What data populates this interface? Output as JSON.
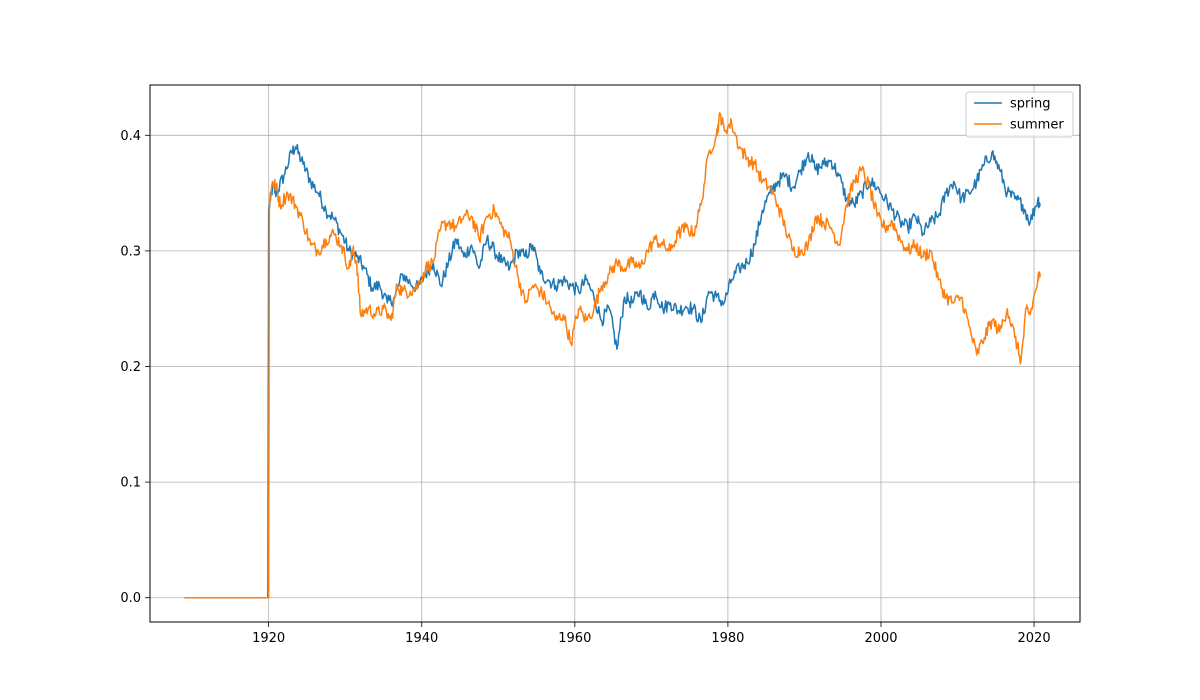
{
  "chart_data": {
    "type": "line",
    "title": "",
    "xlabel": "",
    "ylabel": "",
    "xlim": [
      1904.5,
      2026.0
    ],
    "ylim": [
      -0.021,
      0.4435
    ],
    "grid": true,
    "legend_position": "top-right",
    "xticks": [
      1920,
      1940,
      1960,
      1980,
      2000,
      2020
    ],
    "yticks": [
      0.0,
      0.1,
      0.2,
      0.3,
      0.4
    ],
    "xtick_labels": [
      "1920",
      "1940",
      "1960",
      "1980",
      "2000",
      "2020"
    ],
    "ytick_labels": [
      "0.0",
      "0.1",
      "0.2",
      "0.3",
      "0.4"
    ],
    "series": [
      {
        "name": "spring",
        "color": "#1f77b4",
        "points": [
          [
            1909.0,
            0.0
          ],
          [
            1919.9,
            0.0
          ],
          [
            1920.0,
            0.335
          ],
          [
            1920.5,
            0.355
          ],
          [
            1921.0,
            0.35
          ],
          [
            1922.0,
            0.365
          ],
          [
            1923.0,
            0.385
          ],
          [
            1923.5,
            0.39
          ],
          [
            1924.5,
            0.375
          ],
          [
            1925.5,
            0.36
          ],
          [
            1926.5,
            0.35
          ],
          [
            1927.5,
            0.335
          ],
          [
            1928.5,
            0.328
          ],
          [
            1929.5,
            0.315
          ],
          [
            1930.5,
            0.3
          ],
          [
            1931.5,
            0.295
          ],
          [
            1932.5,
            0.285
          ],
          [
            1933.5,
            0.268
          ],
          [
            1934.5,
            0.27
          ],
          [
            1935.5,
            0.255
          ],
          [
            1936.5,
            0.26
          ],
          [
            1937.5,
            0.28
          ],
          [
            1938.5,
            0.272
          ],
          [
            1939.5,
            0.268
          ],
          [
            1940.5,
            0.28
          ],
          [
            1941.5,
            0.29
          ],
          [
            1942.5,
            0.27
          ],
          [
            1943.5,
            0.29
          ],
          [
            1944.5,
            0.31
          ],
          [
            1945.5,
            0.295
          ],
          [
            1946.5,
            0.305
          ],
          [
            1947.5,
            0.285
          ],
          [
            1948.5,
            0.31
          ],
          [
            1949.5,
            0.3
          ],
          [
            1950.5,
            0.29
          ],
          [
            1951.5,
            0.285
          ],
          [
            1952.5,
            0.3
          ],
          [
            1953.5,
            0.295
          ],
          [
            1954.5,
            0.305
          ],
          [
            1955.5,
            0.28
          ],
          [
            1956.5,
            0.275
          ],
          [
            1957.5,
            0.27
          ],
          [
            1958.5,
            0.275
          ],
          [
            1959.5,
            0.27
          ],
          [
            1960.5,
            0.265
          ],
          [
            1961.5,
            0.275
          ],
          [
            1962.5,
            0.26
          ],
          [
            1963.5,
            0.24
          ],
          [
            1964.5,
            0.25
          ],
          [
            1965.5,
            0.215
          ],
          [
            1966.5,
            0.26
          ],
          [
            1967.5,
            0.255
          ],
          [
            1968.5,
            0.265
          ],
          [
            1969.5,
            0.25
          ],
          [
            1970.5,
            0.265
          ],
          [
            1971.5,
            0.25
          ],
          [
            1972.5,
            0.255
          ],
          [
            1973.5,
            0.248
          ],
          [
            1974.5,
            0.252
          ],
          [
            1975.5,
            0.25
          ],
          [
            1976.5,
            0.238
          ],
          [
            1977.5,
            0.265
          ],
          [
            1978.5,
            0.26
          ],
          [
            1979.5,
            0.255
          ],
          [
            1980.5,
            0.275
          ],
          [
            1981.5,
            0.285
          ],
          [
            1982.5,
            0.29
          ],
          [
            1983.5,
            0.305
          ],
          [
            1984.5,
            0.335
          ],
          [
            1985.5,
            0.35
          ],
          [
            1986.5,
            0.36
          ],
          [
            1987.5,
            0.365
          ],
          [
            1988.5,
            0.355
          ],
          [
            1989.5,
            0.37
          ],
          [
            1990.5,
            0.385
          ],
          [
            1991.5,
            0.37
          ],
          [
            1992.5,
            0.375
          ],
          [
            1993.5,
            0.378
          ],
          [
            1994.5,
            0.365
          ],
          [
            1995.5,
            0.345
          ],
          [
            1996.5,
            0.34
          ],
          [
            1997.5,
            0.35
          ],
          [
            1998.5,
            0.36
          ],
          [
            1999.5,
            0.355
          ],
          [
            2000.5,
            0.345
          ],
          [
            2001.5,
            0.335
          ],
          [
            2002.5,
            0.325
          ],
          [
            2003.5,
            0.32
          ],
          [
            2004.5,
            0.33
          ],
          [
            2005.5,
            0.315
          ],
          [
            2006.5,
            0.325
          ],
          [
            2007.5,
            0.33
          ],
          [
            2008.5,
            0.35
          ],
          [
            2009.5,
            0.36
          ],
          [
            2010.5,
            0.345
          ],
          [
            2011.5,
            0.35
          ],
          [
            2012.5,
            0.36
          ],
          [
            2013.5,
            0.375
          ],
          [
            2014.5,
            0.385
          ],
          [
            2015.5,
            0.37
          ],
          [
            2016.5,
            0.35
          ],
          [
            2017.5,
            0.345
          ],
          [
            2018.5,
            0.34
          ],
          [
            2019.5,
            0.325
          ],
          [
            2020.5,
            0.345
          ],
          [
            2020.8,
            0.34
          ]
        ]
      },
      {
        "name": "summer",
        "color": "#ff7f0e",
        "points": [
          [
            1909.0,
            0.0
          ],
          [
            1920.0,
            0.0
          ],
          [
            1920.1,
            0.34
          ],
          [
            1920.5,
            0.36
          ],
          [
            1921.0,
            0.355
          ],
          [
            1921.5,
            0.34
          ],
          [
            1922.5,
            0.35
          ],
          [
            1923.5,
            0.34
          ],
          [
            1924.5,
            0.325
          ],
          [
            1925.5,
            0.305
          ],
          [
            1926.5,
            0.3
          ],
          [
            1927.5,
            0.31
          ],
          [
            1928.5,
            0.315
          ],
          [
            1929.5,
            0.305
          ],
          [
            1930.5,
            0.285
          ],
          [
            1931.0,
            0.3
          ],
          [
            1931.5,
            0.29
          ],
          [
            1932.0,
            0.245
          ],
          [
            1933.0,
            0.25
          ],
          [
            1934.0,
            0.245
          ],
          [
            1935.0,
            0.25
          ],
          [
            1936.0,
            0.24
          ],
          [
            1936.8,
            0.27
          ],
          [
            1937.5,
            0.265
          ],
          [
            1938.5,
            0.265
          ],
          [
            1939.5,
            0.27
          ],
          [
            1940.5,
            0.285
          ],
          [
            1941.5,
            0.29
          ],
          [
            1942.5,
            0.32
          ],
          [
            1943.5,
            0.325
          ],
          [
            1944.5,
            0.32
          ],
          [
            1945.5,
            0.33
          ],
          [
            1946.5,
            0.33
          ],
          [
            1947.5,
            0.31
          ],
          [
            1948.5,
            0.33
          ],
          [
            1949.5,
            0.335
          ],
          [
            1950.5,
            0.32
          ],
          [
            1951.5,
            0.31
          ],
          [
            1952.5,
            0.28
          ],
          [
            1953.5,
            0.255
          ],
          [
            1954.5,
            0.27
          ],
          [
            1955.5,
            0.265
          ],
          [
            1956.5,
            0.255
          ],
          [
            1957.5,
            0.24
          ],
          [
            1958.5,
            0.245
          ],
          [
            1959.5,
            0.22
          ],
          [
            1960.5,
            0.25
          ],
          [
            1961.5,
            0.24
          ],
          [
            1962.5,
            0.25
          ],
          [
            1963.5,
            0.27
          ],
          [
            1964.5,
            0.28
          ],
          [
            1965.5,
            0.29
          ],
          [
            1966.5,
            0.285
          ],
          [
            1967.5,
            0.29
          ],
          [
            1968.5,
            0.285
          ],
          [
            1969.5,
            0.3
          ],
          [
            1970.5,
            0.31
          ],
          [
            1971.5,
            0.305
          ],
          [
            1972.5,
            0.3
          ],
          [
            1973.5,
            0.315
          ],
          [
            1974.5,
            0.32
          ],
          [
            1975.5,
            0.315
          ],
          [
            1976.5,
            0.34
          ],
          [
            1977.5,
            0.385
          ],
          [
            1978.5,
            0.4
          ],
          [
            1979.0,
            0.418
          ],
          [
            1979.5,
            0.405
          ],
          [
            1980.5,
            0.41
          ],
          [
            1981.5,
            0.39
          ],
          [
            1982.5,
            0.38
          ],
          [
            1983.5,
            0.375
          ],
          [
            1984.5,
            0.36
          ],
          [
            1985.5,
            0.355
          ],
          [
            1986.5,
            0.34
          ],
          [
            1987.5,
            0.32
          ],
          [
            1988.5,
            0.3
          ],
          [
            1989.5,
            0.3
          ],
          [
            1990.5,
            0.305
          ],
          [
            1991.5,
            0.33
          ],
          [
            1992.5,
            0.325
          ],
          [
            1993.5,
            0.32
          ],
          [
            1994.5,
            0.305
          ],
          [
            1995.5,
            0.34
          ],
          [
            1996.5,
            0.36
          ],
          [
            1997.5,
            0.37
          ],
          [
            1998.5,
            0.355
          ],
          [
            1999.5,
            0.33
          ],
          [
            2000.5,
            0.32
          ],
          [
            2001.5,
            0.325
          ],
          [
            2002.5,
            0.31
          ],
          [
            2003.5,
            0.3
          ],
          [
            2004.5,
            0.305
          ],
          [
            2005.5,
            0.295
          ],
          [
            2006.5,
            0.3
          ],
          [
            2007.5,
            0.275
          ],
          [
            2008.5,
            0.26
          ],
          [
            2009.5,
            0.255
          ],
          [
            2010.5,
            0.26
          ],
          [
            2011.5,
            0.235
          ],
          [
            2012.5,
            0.21
          ],
          [
            2013.5,
            0.225
          ],
          [
            2014.5,
            0.24
          ],
          [
            2015.5,
            0.23
          ],
          [
            2016.5,
            0.25
          ],
          [
            2017.5,
            0.225
          ],
          [
            2018.3,
            0.205
          ],
          [
            2019.0,
            0.25
          ],
          [
            2019.5,
            0.245
          ],
          [
            2020.5,
            0.275
          ],
          [
            2020.8,
            0.28
          ]
        ]
      }
    ]
  }
}
